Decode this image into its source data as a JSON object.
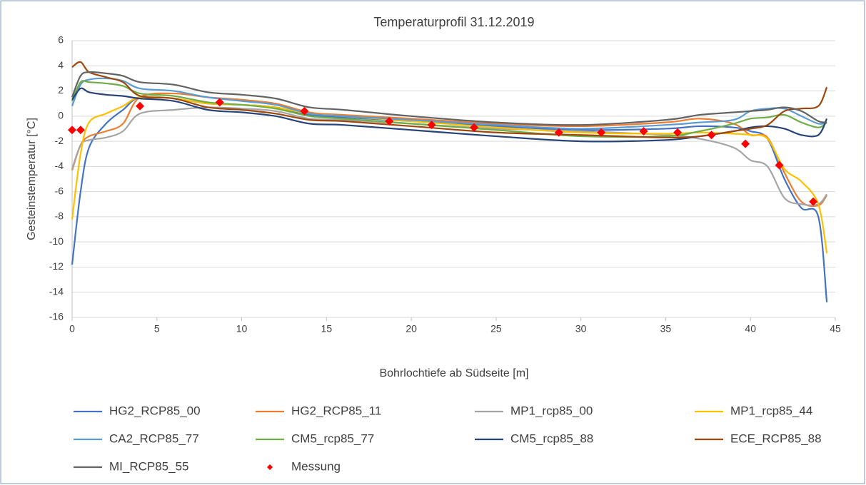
{
  "chart_data": {
    "type": "line",
    "title": "Temperaturprofil 31.12.2019",
    "x_label": "Bohrlochtiefe ab Südseite [m]",
    "y_label": "Gesteinstemperatur [°C]",
    "x": [
      0,
      0.5,
      1,
      2,
      3,
      4,
      6,
      8,
      10,
      12,
      14,
      16,
      20,
      25,
      30,
      35,
      37,
      39,
      40,
      41,
      42,
      43,
      44,
      44.5
    ],
    "xlim": [
      0,
      45
    ],
    "xticks": [
      0,
      5,
      10,
      15,
      20,
      25,
      30,
      35,
      40,
      45
    ],
    "ylim": [
      -16,
      6
    ],
    "yticks": [
      -16,
      -14,
      -12,
      -10,
      -8,
      -6,
      -4,
      -2,
      0,
      2,
      4,
      6
    ],
    "grid": "y",
    "legend": "bottom",
    "series": [
      {
        "name": "HG2_RCP85_00",
        "color": "#4472c4",
        "values": [
          -11.8,
          -6,
          -2.5,
          -0.6,
          0.5,
          1.5,
          1.4,
          1.0,
          0.9,
          0.7,
          0.1,
          -0.1,
          -0.4,
          -0.8,
          -1.1,
          -1.0,
          -0.8,
          -0.9,
          -1.2,
          -1.8,
          -5,
          -7.3,
          -8.0,
          -14.8
        ]
      },
      {
        "name": "HG2_RCP85_11",
        "color": "#ed7d31",
        "values": [
          -4.3,
          -2.3,
          -1.6,
          -1.2,
          -0.6,
          1.5,
          1.8,
          1.5,
          1.3,
          1.0,
          0.3,
          0.1,
          -0.2,
          -0.6,
          -0.8,
          -0.5,
          -0.2,
          -0.6,
          -1.5,
          -1.7,
          -4.5,
          -6.8,
          -7.1,
          -6.3
        ]
      },
      {
        "name": "MP1_rcp85_00",
        "color": "#a5a5a5",
        "values": [
          -4.2,
          -2.3,
          -1.9,
          -1.7,
          -1.2,
          0.2,
          0.5,
          0.7,
          0.6,
          0.4,
          -0.2,
          -0.3,
          -0.6,
          -1.0,
          -1.2,
          -1.5,
          -1.8,
          -2.5,
          -3.5,
          -4.0,
          -6.5,
          -7.0,
          -7.0,
          -6.2
        ]
      },
      {
        "name": "MP1_rcp85_44",
        "color": "#ffc000",
        "values": [
          -8.2,
          -3,
          -0.5,
          0.2,
          0.8,
          1.5,
          1.4,
          1.0,
          0.9,
          0.7,
          0.2,
          0.0,
          -0.4,
          -0.9,
          -1.3,
          -1.4,
          -1.3,
          -1.4,
          -1.5,
          -1.8,
          -4.2,
          -5.2,
          -7.0,
          -10.9
        ]
      },
      {
        "name": "CA2_RCP85_77",
        "color": "#5b9bd5",
        "values": [
          0.8,
          2.5,
          2.9,
          3.0,
          2.8,
          2.2,
          2.0,
          1.5,
          1.2,
          0.9,
          0.2,
          0.0,
          -0.3,
          -0.7,
          -1.0,
          -0.7,
          -0.5,
          -0.3,
          0.4,
          0.6,
          0.6,
          0.0,
          -0.6,
          -0.5
        ]
      },
      {
        "name": "CM5_rcp85_77",
        "color": "#70ad47",
        "values": [
          1.2,
          2.7,
          2.7,
          2.6,
          2.4,
          1.8,
          1.6,
          1.1,
          0.9,
          0.6,
          0.0,
          -0.2,
          -0.6,
          -1.1,
          -1.6,
          -1.6,
          -1.2,
          -0.6,
          -0.2,
          -0.1,
          0.1,
          -0.5,
          -0.9,
          -0.5
        ]
      },
      {
        "name": "CM5_rcp85_88",
        "color": "#264478",
        "values": [
          1.3,
          2.2,
          1.9,
          1.7,
          1.6,
          1.4,
          1.2,
          0.5,
          0.3,
          0.0,
          -0.6,
          -0.7,
          -1.1,
          -1.6,
          -2.0,
          -1.9,
          -1.6,
          -1.2,
          -0.9,
          -0.8,
          -1.0,
          -1.5,
          -1.5,
          -0.2
        ]
      },
      {
        "name": "ECE_RCP85_88",
        "color": "#9e480e",
        "values": [
          3.9,
          4.3,
          3.5,
          3.1,
          2.7,
          1.6,
          1.4,
          0.7,
          0.5,
          0.2,
          -0.3,
          -0.4,
          -0.8,
          -1.3,
          -1.5,
          -1.7,
          -1.6,
          -1.2,
          -1.0,
          -0.7,
          0.4,
          0.6,
          0.8,
          2.3
        ]
      },
      {
        "name": "MI_RCP85_55",
        "color": "#636363",
        "values": [
          1.5,
          3.2,
          3.5,
          3.4,
          3.2,
          2.7,
          2.5,
          1.9,
          1.7,
          1.4,
          0.7,
          0.5,
          0.0,
          -0.5,
          -0.7,
          -0.3,
          0.1,
          0.3,
          0.4,
          0.5,
          0.7,
          0.4,
          -0.4,
          -0.5
        ]
      },
      {
        "name": "Messung",
        "type": "scatter",
        "color": "#ff0000",
        "x": [
          0,
          0.5,
          4,
          8.7,
          13.7,
          18.7,
          21.2,
          23.7,
          28.7,
          31.2,
          33.7,
          35.7,
          37.7,
          39.7,
          41.7,
          43.7
        ],
        "values": [
          -1.1,
          -1.1,
          0.8,
          1.1,
          0.4,
          -0.4,
          -0.7,
          -0.9,
          -1.3,
          -1.3,
          -1.2,
          -1.3,
          -1.5,
          -2.2,
          -3.9,
          -6.8
        ]
      }
    ]
  }
}
